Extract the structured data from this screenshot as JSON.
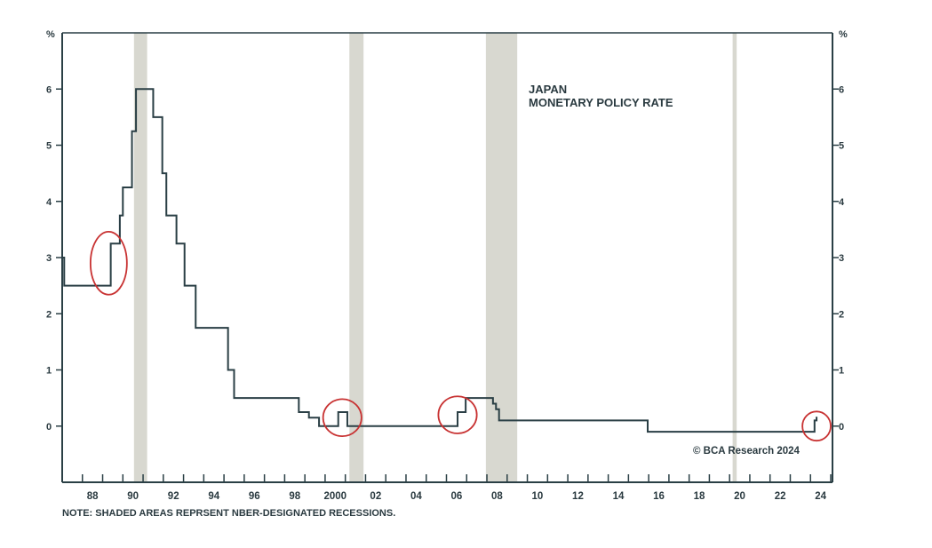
{
  "chart_data": {
    "type": "line",
    "title": "JAPAN",
    "subtitle": "MONETARY POLICY RATE",
    "ylabel_left": "%",
    "ylabel_right": "%",
    "xlim": [
      1987,
      2025
    ],
    "ylim": [
      -1,
      7
    ],
    "y_ticks": [
      0,
      1,
      2,
      3,
      4,
      5,
      6
    ],
    "x_ticks": [
      1988,
      1990,
      1992,
      1994,
      1996,
      1998,
      2000,
      2002,
      2004,
      2006,
      2008,
      2010,
      2012,
      2014,
      2016,
      2018,
      2020,
      2022,
      2024
    ],
    "x_tick_labels": [
      "88",
      "90",
      "92",
      "94",
      "96",
      "98",
      "2000",
      "02",
      "04",
      "06",
      "08",
      "10",
      "12",
      "14",
      "16",
      "18",
      "20",
      "22",
      "24"
    ],
    "series": [
      {
        "name": "Japan monetary policy rate",
        "step": "after",
        "x": [
          1987.0,
          1987.1,
          1989.4,
          1989.7,
          1989.85,
          1990.0,
          1990.2,
          1990.45,
          1990.65,
          1991.5,
          1991.75,
          1991.95,
          1992.15,
          1992.3,
          1992.65,
          1993.05,
          1993.6,
          1995.2,
          1995.5,
          1998.7,
          1998.95,
          1999.2,
          1999.7,
          2000.65,
          2001.1,
          2006.55,
          2006.95,
          2008.3,
          2008.45,
          2008.6,
          2015.95,
          2024.2,
          2024.3
        ],
        "y": [
          3.0,
          2.5,
          3.25,
          3.25,
          3.75,
          4.25,
          4.25,
          5.25,
          6.0,
          5.5,
          5.5,
          4.5,
          3.75,
          3.75,
          3.25,
          2.5,
          1.75,
          1.0,
          0.5,
          0.25,
          0.25,
          0.15,
          0.0,
          0.25,
          0.0,
          0.25,
          0.5,
          0.4,
          0.3,
          0.1,
          -0.1,
          0.1,
          0.15
        ]
      }
    ],
    "recessions": [
      [
        1990.55,
        1991.2
      ],
      [
        2001.2,
        2001.9
      ],
      [
        2007.95,
        2009.5
      ],
      [
        2020.15,
        2020.35
      ]
    ],
    "highlights": [
      {
        "x": 1989.3,
        "y": 2.9,
        "rx_years": 0.9,
        "ry_units": 0.56
      },
      {
        "x": 2000.85,
        "y": 0.15,
        "rx_years": 0.95,
        "ry_units": 0.33
      },
      {
        "x": 2006.55,
        "y": 0.2,
        "rx_years": 0.95,
        "ry_units": 0.33
      },
      {
        "x": 2024.3,
        "y": 0.0,
        "rx_years": 0.7,
        "ry_units": 0.26
      }
    ],
    "colors": {
      "line": "#2a3f45",
      "recession": "#d8d8d0",
      "highlight": "#c83232",
      "axis": "#2a3f45"
    },
    "note": "NOTE: SHADED AREAS REPRSENT NBER-DESIGNATED RECESSIONS.",
    "source": "© BCA Research 2024",
    "grid": false
  }
}
